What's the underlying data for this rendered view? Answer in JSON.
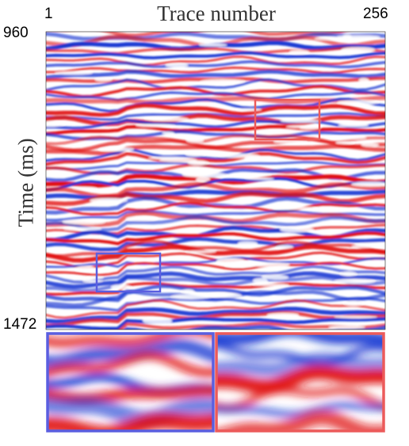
{
  "axes": {
    "title": "Trace number",
    "x_start": "1",
    "x_end": "256",
    "y_label": "Time (ms)",
    "y_start": "960",
    "y_end": "1472"
  },
  "colors": {
    "positive": "#e01010",
    "negative": "#1030d0",
    "neutral": "#ffffff",
    "box_blue": "#5a5ee0",
    "box_red": "#ec5a5a"
  },
  "highlights": [
    {
      "name": "blue-region",
      "color_key": "box_blue"
    },
    {
      "name": "red-region",
      "color_key": "box_red"
    }
  ]
}
